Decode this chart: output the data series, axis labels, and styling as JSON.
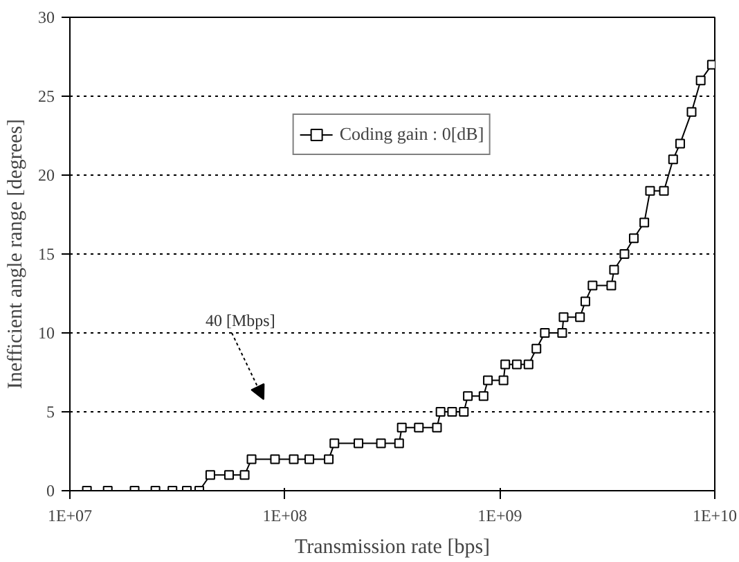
{
  "chart_data": {
    "type": "line",
    "xlabel": "Transmission rate [bps]",
    "ylabel": "Inefficient angle range [degrees]",
    "log": "x",
    "grid": "y",
    "legend": "top",
    "marker": "square",
    "line_style": "solid",
    "xlim": [
      10000000,
      10000000000
    ],
    "ylim": [
      0,
      30
    ],
    "xticks": [
      {
        "value": 10000000,
        "label": "1E+07"
      },
      {
        "value": 100000000,
        "label": "1E+08"
      },
      {
        "value": 1000000000,
        "label": "1E+09"
      },
      {
        "value": 10000000000,
        "label": "1E+10"
      }
    ],
    "yticks": [
      0,
      5,
      10,
      15,
      20,
      25,
      30
    ],
    "annotations": [
      "40 [Mbps]"
    ],
    "series": [
      {
        "name": "Coding gain : 0[dB]",
        "color": "#000000",
        "x": [
          12000000,
          15000000,
          20000000,
          25000000,
          30000000,
          35000000,
          40000000,
          45000000,
          55000000,
          65000000,
          70000000,
          90000000,
          110000000,
          130000000,
          160000000,
          170000000,
          220000000,
          280000000,
          340000000,
          350000000,
          420000000,
          510000000,
          530000000,
          600000000,
          680000000,
          710000000,
          840000000,
          880000000,
          1040000000,
          1060000000,
          1200000000,
          1360000000,
          1480000000,
          1620000000,
          1950000000,
          1980000000,
          2360000000,
          2500000000,
          2700000000,
          3300000000,
          3400000000,
          3800000000,
          4200000000,
          4700000000,
          5000000000,
          5800000000,
          6400000000,
          6900000000,
          7800000000,
          8600000000,
          9700000000
        ],
        "values": [
          0,
          0,
          0,
          0,
          0,
          0,
          0,
          1,
          1,
          1,
          2,
          2,
          2,
          2,
          2,
          3,
          3,
          3,
          3,
          4,
          4,
          4,
          5,
          5,
          5,
          6,
          6,
          7,
          7,
          8,
          8,
          8,
          9,
          10,
          10,
          11,
          11,
          12,
          13,
          13,
          14,
          15,
          16,
          17,
          19,
          19,
          21,
          22,
          24,
          26,
          27
        ]
      }
    ]
  }
}
